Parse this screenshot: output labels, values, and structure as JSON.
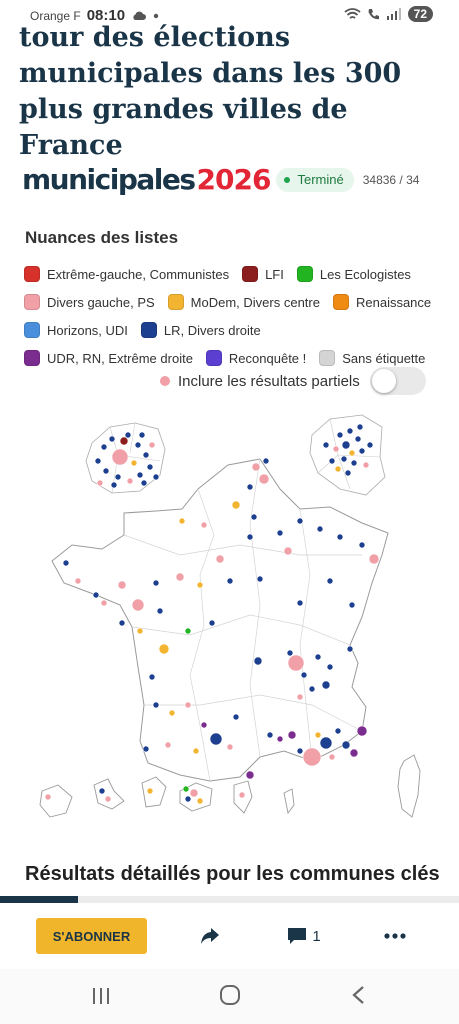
{
  "status_bar": {
    "carrier": "Orange F",
    "time": "08:10",
    "battery": "72"
  },
  "article": {
    "headline": "tour des élections municipales dans les 300 plus grandes villes de France"
  },
  "module": {
    "brand_word": "municipales",
    "brand_year": "2026",
    "status": "Terminé",
    "count": "34836 / 34"
  },
  "legend": {
    "title": "Nuances des listes",
    "items": [
      {
        "label": "Extrême-gauche, Communistes",
        "color": "#d6312b"
      },
      {
        "label": "LFI",
        "color": "#8b1e1e"
      },
      {
        "label": "Les Ecologistes",
        "color": "#22b521"
      },
      {
        "label": "Divers gauche, PS",
        "color": "#f0a0a6"
      },
      {
        "label": "MoDem, Divers centre",
        "color": "#f3b531"
      },
      {
        "label": "Renaissance",
        "color": "#ef8a12"
      },
      {
        "label": "Horizons, UDI",
        "color": "#4a8fdb"
      },
      {
        "label": "LR, Divers droite",
        "color": "#1d3f8f"
      },
      {
        "label": "UDR, RN, Extrême droite",
        "color": "#7b2c8f"
      },
      {
        "label": "Reconquête !",
        "color": "#5b3fd1"
      },
      {
        "label": "Sans étiquette",
        "color": "#d4d4d4"
      }
    ]
  },
  "partials": {
    "label": "Inclure les résultats partiels",
    "enabled": false
  },
  "map": {
    "icon": "france-results-map"
  },
  "section": {
    "title": "Résultats détaillés pour les communes clés"
  },
  "reading_progress": 0.17,
  "toolbar": {
    "subscribe_label": "S'ABONNER",
    "comments_count": "1"
  },
  "icons": {
    "share": "share-icon",
    "comment": "comment-icon",
    "more": "more-icon"
  }
}
